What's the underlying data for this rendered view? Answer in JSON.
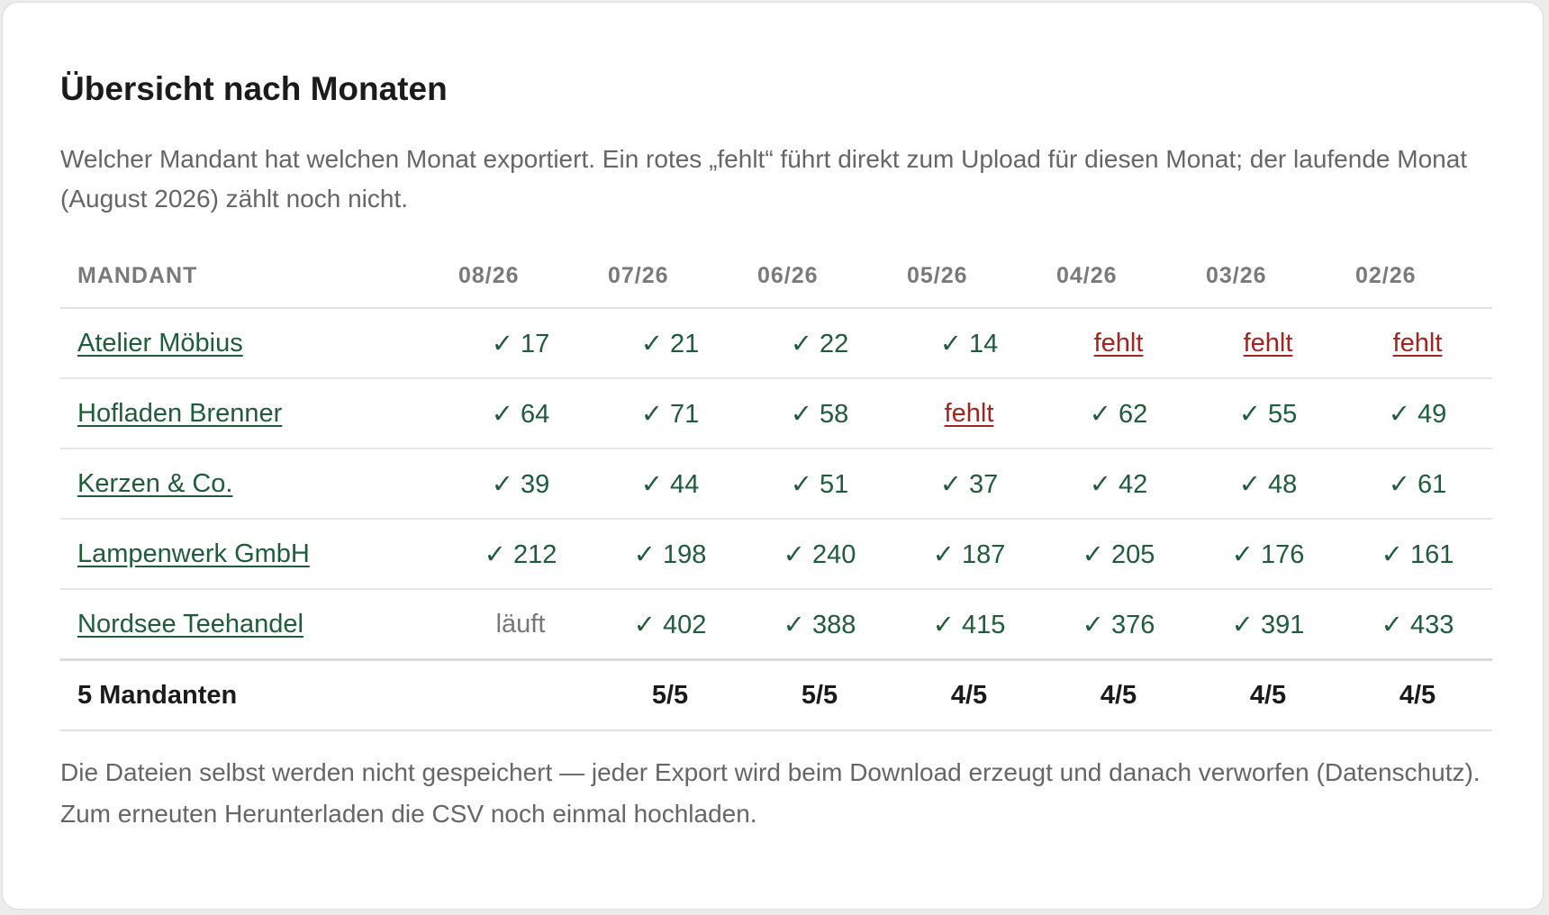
{
  "title": "Übersicht nach Monaten",
  "intro": "Welcher Mandant hat welchen Monat exportiert. Ein rotes „fehlt“ führt direkt zum Upload für diesen Monat; der laufende Monat (August 2026) zählt noch nicht.",
  "table": {
    "client_header": "MANDANT",
    "months": [
      "08/26",
      "07/26",
      "06/26",
      "05/26",
      "04/26",
      "03/26",
      "02/26"
    ],
    "rows": [
      {
        "client": "Atelier Möbius",
        "cells": [
          {
            "status": "ok",
            "text": "✓ 17"
          },
          {
            "status": "ok",
            "text": "✓ 21"
          },
          {
            "status": "ok",
            "text": "✓ 22"
          },
          {
            "status": "ok",
            "text": "✓ 14"
          },
          {
            "status": "missing",
            "text": "fehlt"
          },
          {
            "status": "missing",
            "text": "fehlt"
          },
          {
            "status": "missing",
            "text": "fehlt"
          }
        ]
      },
      {
        "client": "Hofladen Brenner",
        "cells": [
          {
            "status": "ok",
            "text": "✓ 64"
          },
          {
            "status": "ok",
            "text": "✓ 71"
          },
          {
            "status": "ok",
            "text": "✓ 58"
          },
          {
            "status": "missing",
            "text": "fehlt"
          },
          {
            "status": "ok",
            "text": "✓ 62"
          },
          {
            "status": "ok",
            "text": "✓ 55"
          },
          {
            "status": "ok",
            "text": "✓ 49"
          }
        ]
      },
      {
        "client": "Kerzen & Co.",
        "cells": [
          {
            "status": "ok",
            "text": "✓ 39"
          },
          {
            "status": "ok",
            "text": "✓ 44"
          },
          {
            "status": "ok",
            "text": "✓ 51"
          },
          {
            "status": "ok",
            "text": "✓ 37"
          },
          {
            "status": "ok",
            "text": "✓ 42"
          },
          {
            "status": "ok",
            "text": "✓ 48"
          },
          {
            "status": "ok",
            "text": "✓ 61"
          }
        ]
      },
      {
        "client": "Lampenwerk GmbH",
        "cells": [
          {
            "status": "ok",
            "text": "✓ 212"
          },
          {
            "status": "ok",
            "text": "✓ 198"
          },
          {
            "status": "ok",
            "text": "✓ 240"
          },
          {
            "status": "ok",
            "text": "✓ 187"
          },
          {
            "status": "ok",
            "text": "✓ 205"
          },
          {
            "status": "ok",
            "text": "✓ 176"
          },
          {
            "status": "ok",
            "text": "✓ 161"
          }
        ]
      },
      {
        "client": "Nordsee Teehandel",
        "cells": [
          {
            "status": "running",
            "text": "läuft"
          },
          {
            "status": "ok",
            "text": "✓ 402"
          },
          {
            "status": "ok",
            "text": "✓ 388"
          },
          {
            "status": "ok",
            "text": "✓ 415"
          },
          {
            "status": "ok",
            "text": "✓ 376"
          },
          {
            "status": "ok",
            "text": "✓ 391"
          },
          {
            "status": "ok",
            "text": "✓ 433"
          }
        ]
      }
    ],
    "totals": {
      "label": "5 Mandanten",
      "values": [
        "",
        "5/5",
        "5/5",
        "4/5",
        "4/5",
        "4/5",
        "4/5"
      ]
    }
  },
  "footnote": "Die Dateien selbst werden nicht gespeichert — jeder Export wird beim Download erzeugt und danach verworfen (Datenschutz). Zum erneuten Herunterladen die CSV noch einmal hochladen.",
  "colors": {
    "ok_green": "#1f5c3a",
    "missing_red": "#a3231f",
    "muted_text": "#666666"
  }
}
